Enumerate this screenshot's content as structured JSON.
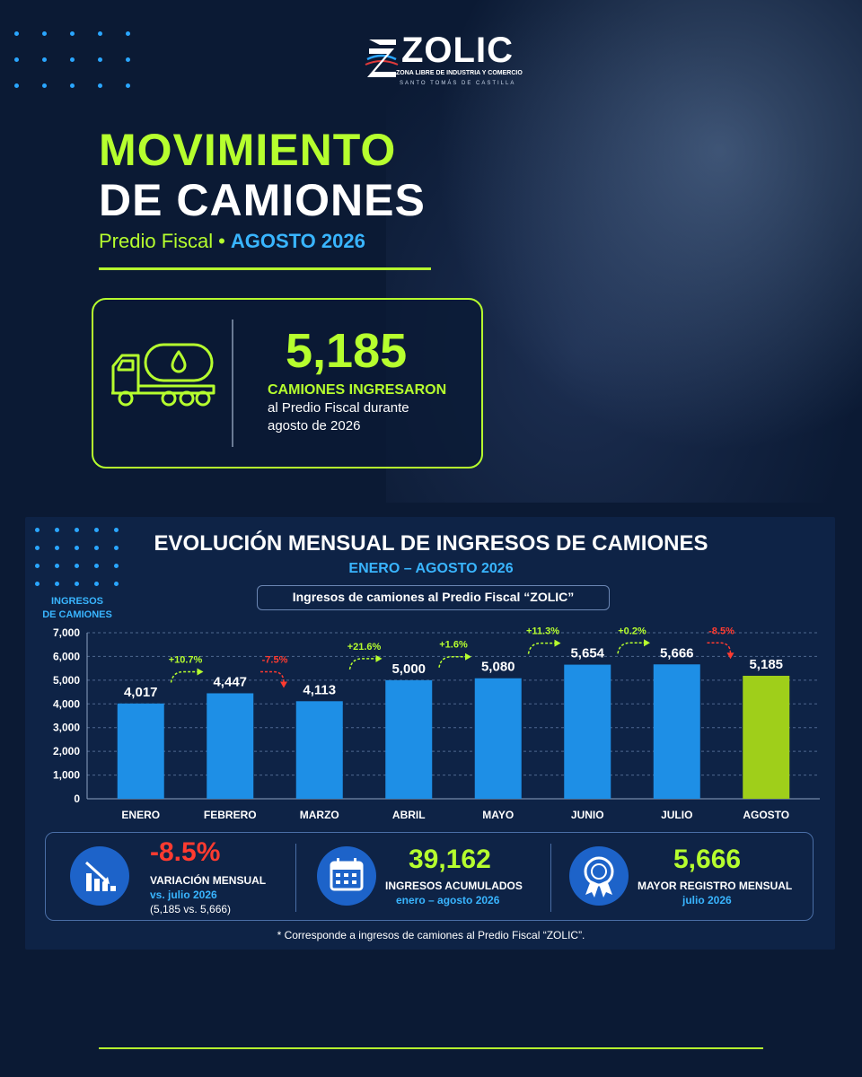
{
  "brand": {
    "name": "ZOLIC",
    "tagline": "ZONA LIBRE DE INDUSTRIA Y COMERCIO",
    "location": "SANTO TOMÁS DE CASTILLA"
  },
  "header": {
    "title_line1": "MOVIMIENTO",
    "title_line2": "DE CAMIONES",
    "subtitle_left": "Predio Fiscal",
    "subtitle_separator": "•",
    "subtitle_right": "AGOSTO 2026"
  },
  "kpi": {
    "value": "5,185",
    "label": "CAMIONES INGRESARON",
    "desc_line1": "al Predio Fiscal durante",
    "desc_line2": "agosto de 2026",
    "icon": "tanker-truck-icon"
  },
  "chart_data": {
    "type": "bar",
    "title": "EVOLUCIÓN MENSUAL DE INGRESOS DE CAMIONES",
    "subtitle": "ENERO – AGOSTO 2026",
    "caption": "Ingresos de camiones al Predio Fiscal “ZOLIC”",
    "ylabel_line1": "INGRESOS",
    "ylabel_line2": "DE CAMIONES",
    "xlabel": "",
    "ylim": [
      0,
      7000
    ],
    "yticks": [
      0,
      1000,
      2000,
      3000,
      4000,
      5000,
      6000,
      7000
    ],
    "ytick_labels": [
      "0",
      "1,000",
      "2,000",
      "3,000",
      "4,000",
      "5,000",
      "6,000",
      "7,000"
    ],
    "grid": true,
    "categories": [
      "ENERO",
      "FEBRERO",
      "MARZO",
      "ABRIL",
      "MAYO",
      "JUNIO",
      "JULIO",
      "AGOSTO"
    ],
    "values": [
      4017,
      4447,
      4113,
      5000,
      5080,
      5654,
      5666,
      5185
    ],
    "value_labels": [
      "4,017",
      "4,447",
      "4,113",
      "5,000",
      "5,080",
      "5,654",
      "5,666",
      "5,185"
    ],
    "changes": [
      {
        "after": "ENERO",
        "label": "+10.7%",
        "direction": "up"
      },
      {
        "after": "FEBRERO",
        "label": "-7.5%",
        "direction": "down"
      },
      {
        "after": "MARZO",
        "label": "+21.6%",
        "direction": "up"
      },
      {
        "after": "ABRIL",
        "label": "+1.6%",
        "direction": "up"
      },
      {
        "after": "MAYO",
        "label": "+11.3%",
        "direction": "up"
      },
      {
        "after": "JUNIO",
        "label": "+0.2%",
        "direction": "up"
      },
      {
        "after": "JULIO",
        "label": "-8.5%",
        "direction": "down"
      }
    ],
    "colors": {
      "bar": "#1e8fe6",
      "highlight": "#9fcf1a",
      "up": "#b6ff2e",
      "down": "#ff3b30"
    },
    "highlight_category": "AGOSTO"
  },
  "stats": [
    {
      "icon": "declining-chart-icon",
      "value": "-8.5%",
      "label": "VARIACIÓN MENSUAL",
      "sub": "vs. julio 2026",
      "note": "(5,185 vs. 5,666)",
      "color": "#ff3b30"
    },
    {
      "icon": "calendar-icon",
      "value": "39,162",
      "label": "INGRESOS ACUMULADOS",
      "sub": "enero – agosto 2026",
      "color": "#b6ff2e"
    },
    {
      "icon": "award-ribbon-icon",
      "value": "5,666",
      "label": "MAYOR REGISTRO MENSUAL",
      "sub": "julio 2026",
      "color": "#b6ff2e"
    }
  ],
  "footnote": "* Corresponde a ingresos de camiones al Predio Fiscal “ZOLIC”."
}
